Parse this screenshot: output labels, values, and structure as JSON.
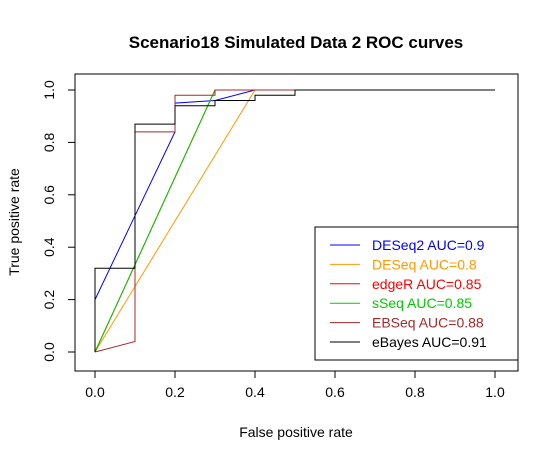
{
  "chart_data": {
    "type": "line",
    "title": "Scenario18 Simulated Data 2 ROC curves",
    "xlabel": "False positive rate",
    "ylabel": "True positive rate",
    "xlim": [
      0,
      1
    ],
    "ylim": [
      0,
      1
    ],
    "xticks": [
      "0.0",
      "0.2",
      "0.4",
      "0.6",
      "0.8",
      "1.0"
    ],
    "yticks": [
      "0.0",
      "0.2",
      "0.4",
      "0.6",
      "0.8",
      "1.0"
    ],
    "grid": false,
    "legend_position": "bottom-right",
    "series": [
      {
        "name": "DESeq2 AUC=0.9",
        "color": "#0000ff",
        "x": [
          0,
          0,
          0.2,
          0.2,
          0.3,
          0.4,
          0.6,
          1
        ],
        "y": [
          0,
          0.2,
          0.84,
          0.95,
          0.96,
          1,
          1,
          1
        ]
      },
      {
        "name": "DESeq AUC=0.8",
        "color": "#ff9900",
        "x": [
          0,
          0.4,
          0.6,
          1
        ],
        "y": [
          0,
          1,
          1,
          1
        ]
      },
      {
        "name": "edgeR AUC=0.85",
        "color": "#ff0000",
        "x": [
          0,
          0.3,
          0.4,
          0.6,
          1
        ],
        "y": [
          0,
          1,
          1,
          1,
          1
        ]
      },
      {
        "name": "sSeq AUC=0.85",
        "color": "#00cc00",
        "x": [
          0,
          0.3,
          0.4,
          0.6,
          1
        ],
        "y": [
          0,
          1,
          1,
          1,
          1
        ]
      },
      {
        "name": "EBSeq AUC=0.88",
        "color": "#a52a2a",
        "x": [
          0,
          0.1,
          0.1,
          0.2,
          0.2,
          0.3,
          0.3,
          0.4,
          0.6,
          1
        ],
        "y": [
          0,
          0.04,
          0.84,
          0.84,
          0.98,
          0.98,
          1,
          1,
          1,
          1
        ]
      },
      {
        "name": "eBayes AUC=0.91",
        "color": "#000000",
        "x": [
          0,
          0,
          0.1,
          0.1,
          0.2,
          0.2,
          0.3,
          0.3,
          0.4,
          0.4,
          0.5,
          0.5,
          1
        ],
        "y": [
          0,
          0.32,
          0.32,
          0.87,
          0.87,
          0.94,
          0.94,
          0.96,
          0.96,
          0.98,
          0.98,
          1,
          1
        ]
      }
    ]
  }
}
